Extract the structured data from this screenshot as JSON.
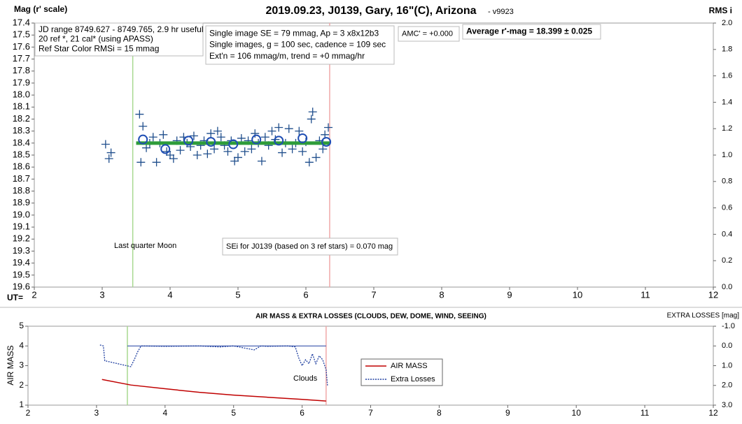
{
  "chart_data": [
    {
      "type": "scatter",
      "title": "2019.09.23, J0139, Gary, 16\"(C), Arizona",
      "subtitle": "- v9923",
      "y_label": "Mag (r' scale)",
      "y2_label": "RMS i",
      "x_label": "UT=",
      "xlim": [
        2,
        12
      ],
      "xticks": [
        2,
        3,
        4,
        5,
        6,
        7,
        8,
        9,
        10,
        11,
        12
      ],
      "ylim": [
        17.4,
        19.6
      ],
      "y_inverted": true,
      "yticks": [
        17.4,
        17.5,
        17.6,
        17.7,
        17.8,
        17.9,
        {
          "value": 18,
          "label": "18.0"
        },
        18.1,
        18.2,
        18.3,
        18.4,
        18.5,
        18.6,
        18.7,
        18.8,
        18.9,
        {
          "value": 19,
          "label": "19.0"
        },
        19.1,
        19.2,
        19.3,
        19.4,
        19.5,
        19.6
      ],
      "y2lim": [
        0,
        2
      ],
      "y2ticks": [
        {
          "value": 0,
          "label": "0.0"
        },
        0.2,
        0.4,
        0.6,
        0.8,
        {
          "value": 1,
          "label": "1.0"
        },
        1.2,
        1.4,
        1.6,
        1.8,
        {
          "value": 2,
          "label": "2.0"
        }
      ],
      "points": {
        "color": "#1f4e8c",
        "x": [
          3.05,
          3.1,
          3.13,
          3.55,
          3.57,
          3.6,
          3.65,
          3.7,
          3.75,
          3.8,
          3.85,
          3.9,
          3.95,
          4.0,
          4.05,
          4.1,
          4.15,
          4.2,
          4.25,
          4.3,
          4.35,
          4.4,
          4.45,
          4.5,
          4.55,
          4.6,
          4.65,
          4.7,
          4.75,
          4.8,
          4.85,
          4.9,
          4.95,
          5.0,
          5.05,
          5.1,
          5.15,
          5.2,
          5.25,
          5.3,
          5.35,
          5.4,
          5.45,
          5.5,
          5.55,
          5.6,
          5.65,
          5.7,
          5.75,
          5.8,
          5.85,
          5.9,
          5.95,
          6.0,
          6.05,
          6.08,
          6.1,
          6.15,
          6.2,
          6.25,
          6.28,
          6.33
        ],
        "y": [
          18.41,
          18.53,
          18.48,
          18.16,
          18.56,
          18.26,
          18.44,
          18.4,
          18.35,
          18.56,
          18.4,
          18.33,
          18.47,
          18.5,
          18.53,
          18.38,
          18.46,
          18.35,
          18.4,
          18.43,
          18.34,
          18.5,
          18.42,
          18.38,
          18.49,
          18.32,
          18.45,
          18.3,
          18.35,
          18.42,
          18.47,
          18.38,
          18.55,
          18.52,
          18.36,
          18.47,
          18.38,
          18.45,
          18.32,
          18.4,
          18.55,
          18.35,
          18.42,
          18.3,
          18.37,
          18.27,
          18.48,
          18.4,
          18.28,
          18.45,
          18.4,
          18.3,
          18.47,
          18.39,
          18.56,
          18.2,
          18.14,
          18.52,
          18.38,
          18.45,
          18.33,
          18.27
        ]
      },
      "averages": {
        "color": "#1f4eb4",
        "x": [
          3.6,
          3.93,
          4.27,
          4.6,
          4.93,
          5.27,
          5.6,
          5.95,
          6.3
        ],
        "y": [
          18.37,
          18.45,
          18.38,
          18.39,
          18.41,
          18.37,
          18.38,
          18.36,
          18.39
        ]
      },
      "trend": {
        "color": "#2e9c3a",
        "x": [
          3.5,
          6.35
        ],
        "y": [
          18.4,
          18.4
        ]
      },
      "vlines": [
        {
          "x": 3.45,
          "color": "#a8d890"
        },
        {
          "x": 6.35,
          "color": "#f0a8a8"
        }
      ],
      "annotations": [
        {
          "lines": [
            "JD range 8749.627 - 8749.765, 2.9 hr useful",
            "20 ref *, 21 cal* (using APASS)",
            "Ref Star Color RMSi = 15 mmag"
          ]
        },
        {
          "lines": [
            "Single image SE = 79 mmag, Ap = 3 x8x12b3",
            "Single images, g = 100 sec, cadence = 109 sec",
            "Ext'n = 106 mmag/m, trend = +0 mmag/hr"
          ]
        },
        {
          "lines": [
            "AMC' = +0.000"
          ]
        },
        {
          "lines": [
            "Average r'-mag =  18.399 ± 0.025"
          ]
        },
        {
          "lines": [
            "Last quarter Moon"
          ]
        },
        {
          "lines": [
            "SEi for J0139 (based on 3 ref stars) = 0.070 mag"
          ]
        }
      ]
    },
    {
      "type": "line",
      "title": "AIR MASS & EXTRA LOSSES (CLOUDS, DEW, DOME, WIND, SEEING)",
      "y_label": "AIR MASS",
      "y2_label": "EXTRA LOSSES [mag]",
      "xlim": [
        2,
        12
      ],
      "xticks": [
        2,
        3,
        4,
        5,
        6,
        7,
        8,
        9,
        10,
        11,
        12
      ],
      "ylim": [
        1,
        5
      ],
      "yticks": [
        1,
        2,
        3,
        4,
        5
      ],
      "y2lim": [
        -1,
        3
      ],
      "y2_inverted": true,
      "y2ticks": [
        {
          "value": -1,
          "label": "-1.0"
        },
        {
          "value": 0,
          "label": "0.0"
        },
        {
          "value": 1,
          "label": "1.0"
        },
        {
          "value": 2,
          "label": "2.0"
        },
        {
          "value": 3,
          "label": "3.0"
        }
      ],
      "series": [
        {
          "name": "AIR MASS",
          "color": "#c00000",
          "dash": false,
          "x": [
            3.08,
            3.5,
            4.0,
            4.5,
            5.0,
            5.5,
            6.0,
            6.35
          ],
          "values": [
            2.3,
            2.02,
            1.83,
            1.65,
            1.51,
            1.4,
            1.29,
            1.21
          ]
        },
        {
          "name": "Extra Losses",
          "color": "#1f3fa0",
          "dash": true,
          "axis": "y2",
          "x": [
            3.05,
            3.1,
            3.12,
            3.5,
            3.55,
            3.6,
            3.65,
            4.0,
            4.5,
            4.8,
            5.0,
            5.3,
            5.4,
            5.5,
            5.8,
            5.9,
            5.95,
            6.0,
            6.05,
            6.1,
            6.15,
            6.2,
            6.25,
            6.3,
            6.35,
            6.37
          ],
          "values": [
            -0.05,
            0.0,
            0.75,
            1.05,
            0.7,
            0.3,
            0.0,
            0.02,
            0.0,
            0.05,
            0.0,
            0.2,
            0.0,
            0.02,
            0.0,
            0.05,
            0.6,
            1.0,
            0.7,
            0.9,
            0.4,
            0.9,
            0.5,
            0.7,
            1.2,
            2.0
          ]
        }
      ],
      "hlines": [
        {
          "y2": 0,
          "x": [
            3.45,
            6.35
          ],
          "color": "#1f3fa0"
        }
      ],
      "vlines": [
        {
          "x": 3.45,
          "color": "#a8d890"
        },
        {
          "x": 6.35,
          "color": "#f0a8a8"
        }
      ],
      "annotations": [
        {
          "lines": [
            "Clouds"
          ]
        }
      ]
    }
  ]
}
